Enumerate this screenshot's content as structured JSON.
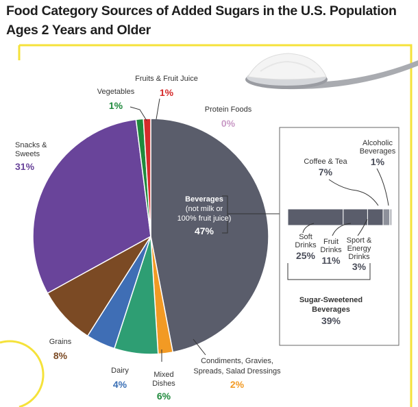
{
  "title": "Food Category Sources of Added Sugars in the U.S. Population Ages 2 Years and Older",
  "chart_data": {
    "type": "pie",
    "unit": "%",
    "slices": [
      {
        "id": "beverages",
        "label_lines": [
          "Beverages",
          "(not milk or",
          "100% fruit juice)"
        ],
        "value": 47,
        "value_text": "47%",
        "color": "#5a5d6b"
      },
      {
        "id": "condiments",
        "label_lines": [
          "Condiments, Gravies,",
          "Spreads, Salad Dressings"
        ],
        "value": 2,
        "value_text": "2%",
        "color": "#f29a24"
      },
      {
        "id": "mixed-dishes",
        "label_lines": [
          "Mixed",
          "Dishes"
        ],
        "value": 6,
        "value_text": "6%",
        "color": "#2e9e73"
      },
      {
        "id": "dairy",
        "label_lines": [
          "Dairy"
        ],
        "value": 4,
        "value_text": "4%",
        "color": "#3f6eb5"
      },
      {
        "id": "grains",
        "label_lines": [
          "Grains"
        ],
        "value": 8,
        "value_text": "8%",
        "color": "#7b4a24"
      },
      {
        "id": "snacks-sweets",
        "label_lines": [
          "Snacks &",
          "Sweets"
        ],
        "value": 31,
        "value_text": "31%",
        "color": "#69449a"
      },
      {
        "id": "vegetables",
        "label_lines": [
          "Vegetables"
        ],
        "value": 1,
        "value_text": "1%",
        "color": "#1f8a3c"
      },
      {
        "id": "fruits-juice",
        "label_lines": [
          "Fruits & Fruit Juice"
        ],
        "value": 1,
        "value_text": "1%",
        "color": "#d52b2b"
      },
      {
        "id": "protein-foods",
        "label_lines": [
          "Protein Foods"
        ],
        "value": 0,
        "value_text": "0%",
        "color": "#c99ac6"
      }
    ],
    "breakdown": {
      "of": "Beverages (not milk or 100% fruit juice)",
      "type": "stacked-bar",
      "segments": [
        {
          "id": "soft-drinks",
          "label_lines": [
            "Soft",
            "Drinks"
          ],
          "value": 25,
          "value_text": "25%",
          "color": "#5a5d6b"
        },
        {
          "id": "fruit-drinks",
          "label_lines": [
            "Fruit",
            "Drinks"
          ],
          "value": 11,
          "value_text": "11%",
          "color": "#5a5d6b"
        },
        {
          "id": "coffee-tea",
          "label_lines": [
            "Coffee & Tea"
          ],
          "value": 7,
          "value_text": "7%",
          "color": "#5a5d6b"
        },
        {
          "id": "sport-energy",
          "label_lines": [
            "Sport &",
            "Energy",
            "Drinks"
          ],
          "value": 3,
          "value_text": "3%",
          "color": "#8d909a"
        },
        {
          "id": "alcoholic",
          "label_lines": [
            "Alcoholic",
            "Beverages"
          ],
          "value": 1,
          "value_text": "1%",
          "color": "#b4b6bc"
        }
      ],
      "subtotal": {
        "label_lines": [
          "Sugar-Sweetened",
          "Beverages"
        ],
        "value": 39,
        "value_text": "39%"
      }
    }
  },
  "colors": {
    "frame": "#f5e23a",
    "percent_blue": "#3a6fb5",
    "percent_green": "#1f8a3c",
    "percent_red": "#d52b2b",
    "percent_orange": "#f29a24",
    "percent_brown": "#7b4a24",
    "percent_purple": "#69449a",
    "percent_pink": "#c99ac6",
    "percent_dark": "#4a4d59"
  }
}
